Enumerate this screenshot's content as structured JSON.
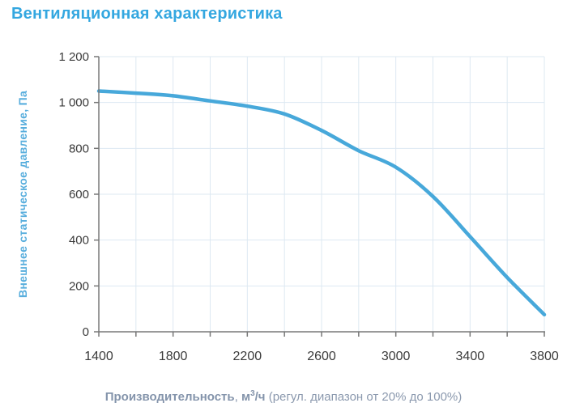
{
  "title": "Вентиляционная характеристика",
  "y_axis": {
    "label": "Внешнее статическое давление, Па"
  },
  "x_axis": {
    "name": "Производительность",
    "separator": ", ",
    "unit_base": "м",
    "unit_sup": "3",
    "unit_rest": "/ч",
    "note": " (регул. диапазон от 20% до 100%)"
  },
  "chart_data": {
    "type": "line",
    "title": "Вентиляционная характеристика",
    "xlabel": "Производительность, м³/ч (регул. диапазон от 20% до 100%)",
    "ylabel": "Внешнее статическое давление, Па",
    "x": [
      1400,
      1600,
      1800,
      2000,
      2200,
      2400,
      2600,
      2800,
      3000,
      3200,
      3400,
      3600,
      3800
    ],
    "y": [
      1050,
      1041,
      1029,
      1007,
      984,
      950,
      878,
      790,
      718,
      590,
      415,
      237,
      75
    ],
    "xlim": [
      1400,
      3800
    ],
    "ylim": [
      0,
      1200
    ],
    "x_major_ticks": [
      1400,
      1800,
      2200,
      2600,
      3000,
      3400,
      3800
    ],
    "x_tick_labels": [
      "1400",
      "1800",
      "2200",
      "2600",
      "3000",
      "3400",
      "3800"
    ],
    "x_minor_tick_step": 200,
    "y_ticks": [
      0,
      200,
      400,
      600,
      800,
      1000,
      1200
    ],
    "y_tick_labels": [
      "0",
      "200",
      "400",
      "600",
      "800",
      "1 000",
      "1 200"
    ],
    "grid": true,
    "legend": "none",
    "line_color": "#47a8da",
    "grid_color": "#dde8f2",
    "axis_color": "#787878",
    "tick_label_color": "#3a3a3a"
  }
}
